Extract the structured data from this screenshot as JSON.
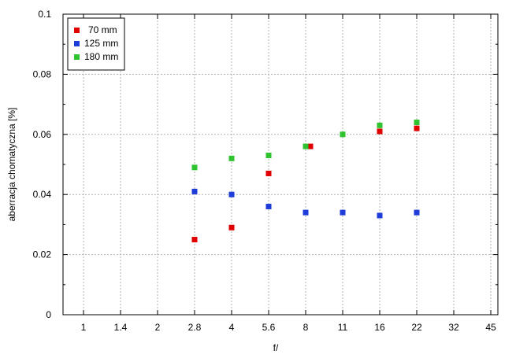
{
  "chart_data": {
    "type": "scatter",
    "x_categories": [
      "1",
      "1.4",
      "2",
      "2.8",
      "4",
      "5.6",
      "8",
      "11",
      "16",
      "22",
      "32",
      "45"
    ],
    "xlabel": "f/",
    "ylabel": "aberracja chomatyczna [%]",
    "ylim": [
      0,
      0.1
    ],
    "y_ticks": [
      "0",
      "0.02",
      "0.04",
      "0.06",
      "0.08",
      "0.1"
    ],
    "grid": true,
    "legend": "top-left",
    "series": [
      {
        "name": "70 mm",
        "color": "#e00000",
        "points": [
          {
            "x": "2.8",
            "y": 0.025
          },
          {
            "x": "4",
            "y": 0.029
          },
          {
            "x": "5.6",
            "y": 0.047
          },
          {
            "x": "8",
            "y": 0.056
          },
          {
            "x": "16",
            "y": 0.061
          },
          {
            "x": "22",
            "y": 0.062
          }
        ]
      },
      {
        "name": "125 mm",
        "color": "#1e3cd8",
        "points": [
          {
            "x": "2.8",
            "y": 0.041
          },
          {
            "x": "4",
            "y": 0.04
          },
          {
            "x": "5.6",
            "y": 0.036
          },
          {
            "x": "8",
            "y": 0.034
          },
          {
            "x": "11",
            "y": 0.034
          },
          {
            "x": "16",
            "y": 0.033
          },
          {
            "x": "22",
            "y": 0.034
          }
        ]
      },
      {
        "name": "180 mm",
        "color": "#2fc42f",
        "points": [
          {
            "x": "2.8",
            "y": 0.049
          },
          {
            "x": "4",
            "y": 0.052
          },
          {
            "x": "5.6",
            "y": 0.053
          },
          {
            "x": "8",
            "y": 0.056
          },
          {
            "x": "11",
            "y": 0.06
          },
          {
            "x": "16",
            "y": 0.063
          },
          {
            "x": "22",
            "y": 0.064
          }
        ]
      }
    ]
  }
}
